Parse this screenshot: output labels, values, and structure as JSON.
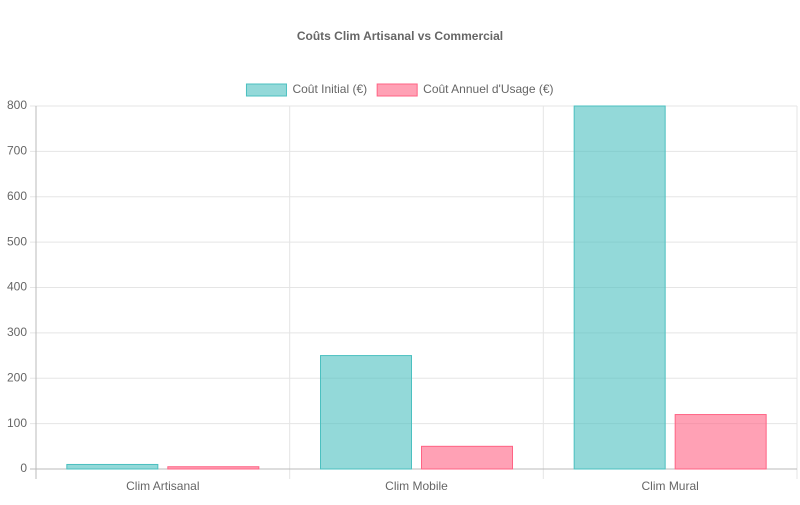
{
  "chart_data": {
    "type": "bar",
    "title": "Coûts Clim Artisanal vs Commercial",
    "categories": [
      "Clim Artisanal",
      "Clim Mobile",
      "Clim Mural"
    ],
    "series": [
      {
        "name": "Coût Initial (€)",
        "color": "rgba(75,192,192,0.6)",
        "border": "rgb(75,192,192)",
        "values": [
          10,
          250,
          800
        ]
      },
      {
        "name": "Coût Annuel d'Usage (€)",
        "color": "rgba(255,99,132,0.6)",
        "border": "rgb(255,99,132)",
        "values": [
          5,
          50,
          120
        ]
      }
    ],
    "ylim": [
      0,
      800
    ],
    "yticks": [
      0,
      100,
      200,
      300,
      400,
      500,
      600,
      700,
      800
    ],
    "grid": true,
    "legend": "top"
  }
}
